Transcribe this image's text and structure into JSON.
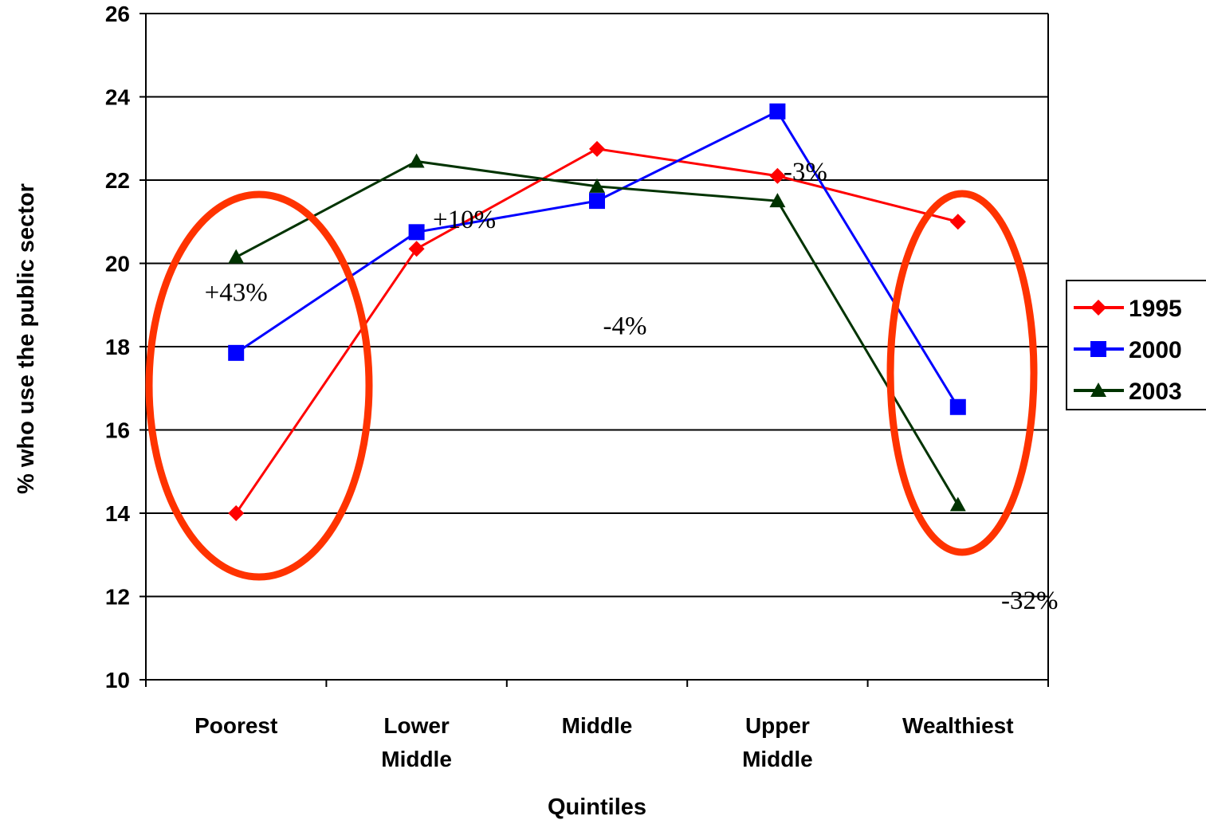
{
  "chart_data": {
    "type": "line",
    "title": "",
    "xlabel": "Quintiles",
    "ylabel": "% who use the public sector",
    "ylim": [
      10,
      26
    ],
    "y_ticks": [
      "10",
      "12",
      "14",
      "16",
      "18",
      "20",
      "22",
      "24",
      "26"
    ],
    "grid": "horizontal",
    "categories": [
      "Poorest",
      "Lower Middle",
      "Middle",
      "Upper Middle",
      "Wealthiest"
    ],
    "category_lines": [
      [
        "Poorest"
      ],
      [
        "Lower",
        "Middle"
      ],
      [
        "Middle"
      ],
      [
        "Upper",
        "Middle"
      ],
      [
        "Wealthiest"
      ]
    ],
    "legend_position": "right",
    "series": [
      {
        "name": "1995",
        "color": "#ff0000",
        "marker": "diamond",
        "values": [
          14.0,
          20.35,
          22.75,
          22.1,
          21.0
        ]
      },
      {
        "name": "2000",
        "color": "#0000ff",
        "marker": "square",
        "values": [
          17.85,
          20.75,
          21.5,
          23.65,
          16.55
        ]
      },
      {
        "name": "2003",
        "color": "#003300",
        "marker": "triangle",
        "values": [
          20.15,
          22.45,
          21.85,
          21.5,
          14.2
        ]
      }
    ],
    "highlight_color": "#ff3300",
    "annotations": [
      {
        "text": "+43%",
        "category": "Poorest",
        "y": 19.1
      },
      {
        "text": "+10%",
        "category": "Lower Middle",
        "y": 20.85
      },
      {
        "text": "-4%",
        "category": "Middle",
        "y": 18.3
      },
      {
        "text": "-3%",
        "category": "Upper Middle",
        "y": 22.0
      },
      {
        "text": "-32%",
        "category": "Wealthiest",
        "y": 11.7
      }
    ]
  }
}
